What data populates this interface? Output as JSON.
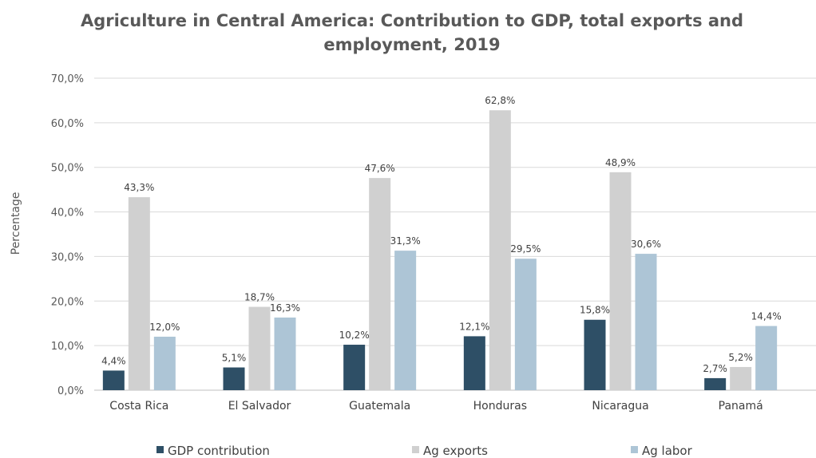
{
  "chart_data": {
    "type": "bar",
    "title": "Agriculture in Central America: Contribution to GDP, total exports and employment, 2019",
    "title_lines": [
      "Agriculture in Central America: Contribution to GDP, total exports and",
      "employment, 2019"
    ],
    "xlabel": "",
    "ylabel": "Percentage",
    "ylim": [
      0,
      70
    ],
    "yticks": [
      "0,0%",
      "10,0%",
      "20,0%",
      "30,0%",
      "40,0%",
      "50,0%",
      "60,0%",
      "70,0%"
    ],
    "ytick_values": [
      0,
      10,
      20,
      30,
      40,
      50,
      60,
      70
    ],
    "grid": true,
    "legend_position": "bottom",
    "categories": [
      "Costa Rica",
      "El Salvador",
      "Guatemala",
      "Honduras",
      "Nicaragua",
      "Panamá"
    ],
    "series": [
      {
        "name": "GDP contribution",
        "color": "#2e4f66",
        "values": [
          4.4,
          5.1,
          10.2,
          12.1,
          15.8,
          2.7
        ],
        "labels": [
          "4,4%",
          "5,1%",
          "10,2%",
          "12,1%",
          "15,8%",
          "2,7%"
        ]
      },
      {
        "name": "Ag exports",
        "color": "#d0d0d0",
        "values": [
          43.3,
          18.7,
          47.6,
          62.8,
          48.9,
          5.2
        ],
        "labels": [
          "43,3%",
          "18,7%",
          "47,6%",
          "62,8%",
          "48,9%",
          "5,2%"
        ]
      },
      {
        "name": "Ag labor",
        "color": "#adc5d6",
        "values": [
          12.0,
          16.3,
          31.3,
          29.5,
          30.6,
          14.4
        ],
        "labels": [
          "12,0%",
          "16,3%",
          "31,3%",
          "29,5%",
          "30,6%",
          "14,4%"
        ]
      }
    ]
  }
}
